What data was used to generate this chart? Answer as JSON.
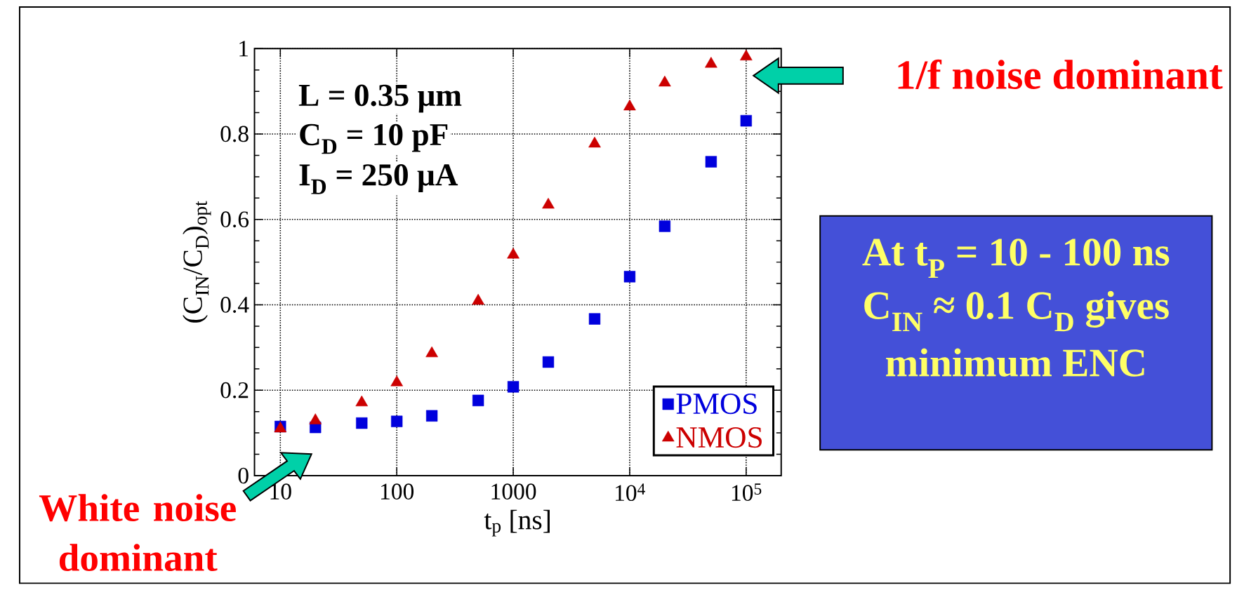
{
  "chart_data": {
    "type": "scatter",
    "xlabel": "t$_{p}$ [ns]",
    "ylabel": "(C$_{IN}$/C$_{D}$)$_{opt}$",
    "x": [
      10,
      20,
      50,
      100,
      200,
      500,
      1000,
      2000,
      5000,
      10000,
      20000,
      50000,
      100000
    ],
    "series": [
      {
        "name": "PMOS",
        "color": "#0000dd",
        "marker": "square",
        "values": [
          0.115,
          0.113,
          0.123,
          0.127,
          0.14,
          0.176,
          0.208,
          0.266,
          0.367,
          0.466,
          0.584,
          0.735,
          0.831
        ]
      },
      {
        "name": "NMOS",
        "color": "#cc0000",
        "marker": "triangle",
        "values": [
          0.11,
          0.129,
          0.171,
          0.218,
          0.286,
          0.409,
          0.517,
          0.634,
          0.777,
          0.864,
          0.92,
          0.964,
          0.981
        ]
      }
    ],
    "log": "x",
    "xlim": [
      6,
      200000
    ],
    "ylim": [
      0,
      1
    ],
    "xticks": [
      10,
      100,
      1000,
      {
        "value": 10000,
        "label": "10$^{4}$"
      },
      {
        "value": 100000,
        "label": "10$^{5}$"
      }
    ],
    "yticks": [
      0,
      0.2,
      0.4,
      0.6,
      0.8,
      1
    ],
    "grid": true,
    "legend": "bottom right",
    "annotations": [
      "L = 0.35 μm",
      "C$_{D}$ = 10 pF",
      "I$_{D}$ = 250 μA",
      "1/f noise dominant",
      "White noise dominant",
      "At t$_{P}$ = 10 - 100 ns",
      "C$_{IN}$ ≈ 0.1 C$_{D}$ gives",
      "minimum ENC"
    ]
  }
}
